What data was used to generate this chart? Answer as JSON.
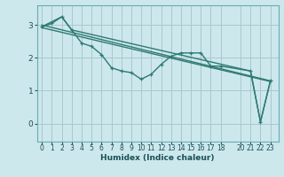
{
  "xlabel": "Humidex (Indice chaleur)",
  "background_color": "#cce8ec",
  "grid_color": "#aac8cc",
  "line_color": "#2e7a72",
  "x_ticks": [
    0,
    1,
    2,
    3,
    4,
    5,
    6,
    7,
    8,
    9,
    10,
    11,
    12,
    13,
    14,
    15,
    16,
    17,
    18,
    20,
    21,
    22,
    23
  ],
  "ylim": [
    -0.55,
    3.6
  ],
  "xlim": [
    -0.5,
    23.8
  ],
  "yticks": [
    0,
    1,
    2,
    3
  ],
  "line1_x": [
    0,
    1,
    2,
    3,
    4,
    5,
    6,
    7,
    8,
    9,
    10,
    11,
    12,
    13,
    14,
    15,
    16,
    17,
    18,
    21,
    22,
    23
  ],
  "line1_y": [
    2.95,
    3.05,
    3.25,
    2.85,
    2.45,
    2.35,
    2.1,
    1.7,
    1.6,
    1.55,
    1.35,
    1.5,
    1.8,
    2.05,
    2.15,
    2.15,
    2.15,
    1.75,
    1.75,
    1.6,
    0.05,
    1.3
  ],
  "line2_x": [
    0,
    23
  ],
  "line2_y": [
    3.0,
    1.3
  ],
  "line3_x": [
    0,
    2,
    3,
    21,
    22,
    23
  ],
  "line3_y": [
    2.95,
    3.25,
    2.85,
    1.6,
    0.05,
    1.3
  ],
  "line4_x": [
    0,
    23
  ],
  "line4_y": [
    2.92,
    1.28
  ]
}
